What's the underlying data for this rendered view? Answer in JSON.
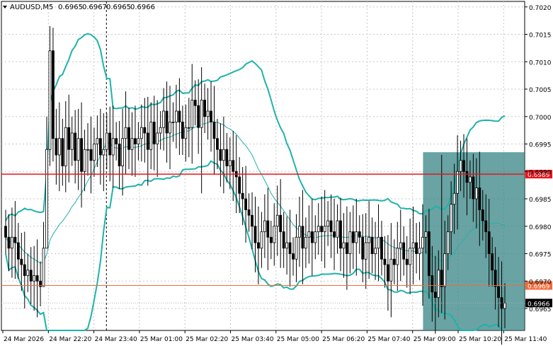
{
  "chart_data": {
    "type": "candlestick",
    "title": "AUDUSD,M5",
    "ohlc_header": [
      "0.6965",
      "0.6967",
      "0.6965",
      "0.6966"
    ],
    "ylim": [
      0.6961,
      0.7021
    ],
    "grid": true,
    "y_ticks": [
      "0.6965",
      "0.6970",
      "0.6975",
      "0.6980",
      "0.6985",
      "0.6990",
      "0.6995",
      "0.7000",
      "0.7005",
      "0.7010",
      "0.7015",
      "0.7020"
    ],
    "x_ticks": [
      "24 Mar 2026",
      "24 Mar 22:20",
      "24 Mar 23:40",
      "25 Mar 01:00",
      "25 Mar 02:20",
      "25 Mar 03:40",
      "25 Mar 05:00",
      "25 Mar 06:20",
      "25 Mar 07:40",
      "25 Mar 09:00",
      "25 Mar 10:20",
      "25 Mar 11:40"
    ],
    "period_separator_after": "24 Mar 22:20",
    "horizontal_lines": [
      {
        "price": 0.69895,
        "label": "0.6989",
        "color": "#e8141c"
      },
      {
        "price": 0.69692,
        "label": "0.6969",
        "color": "#f26a3a"
      }
    ],
    "current_price": {
      "price": 0.6966,
      "label": "0.6966"
    },
    "highlight_zone": {
      "price_top": 0.69935,
      "price_bottom": 0.6961
    },
    "candles_close": [
      0.6978,
      0.6976,
      0.6978,
      0.6977,
      0.6974,
      0.6973,
      0.6971,
      0.6972,
      0.697,
      0.6971,
      0.697,
      0.6969,
      0.6976,
      0.6994,
      0.7012,
      0.6996,
      0.6993,
      0.6996,
      0.6991,
      0.6998,
      0.6994,
      0.6997,
      0.6992,
      0.6996,
      0.699,
      0.6994,
      0.6994,
      0.6992,
      0.6995,
      0.6996,
      0.6993,
      0.6994,
      0.6997,
      0.6993,
      0.6996,
      0.6995,
      0.6991,
      0.6996,
      0.6998,
      0.6994,
      0.6996,
      0.6995,
      0.6996,
      0.6998,
      0.6997,
      0.6994,
      0.6999,
      0.6995,
      0.6997,
      0.6998,
      0.7001,
      0.6997,
      0.6999,
      0.6999,
      0.7001,
      0.6999,
      0.6996,
      0.6998,
      0.6998,
      0.7003,
      0.7002,
      0.6998,
      0.7003,
      0.7,
      0.7001,
      0.6999,
      0.6996,
      0.6994,
      0.6992,
      0.6994,
      0.6991,
      0.6992,
      0.699,
      0.6989,
      0.6986,
      0.6985,
      0.6983,
      0.6982,
      0.698,
      0.6977,
      0.6976,
      0.6979,
      0.6981,
      0.6978,
      0.6977,
      0.698,
      0.6982,
      0.6979,
      0.6976,
      0.6977,
      0.6975,
      0.6974,
      0.6978,
      0.698,
      0.6976,
      0.6978,
      0.6979,
      0.6977,
      0.6979,
      0.698,
      0.6979,
      0.698,
      0.6981,
      0.6979,
      0.6978,
      0.6981,
      0.6976,
      0.6977,
      0.6975,
      0.6979,
      0.6977,
      0.6979,
      0.6978,
      0.6974,
      0.6977,
      0.6978,
      0.6975,
      0.6976,
      0.6978,
      0.6974,
      0.6973,
      0.697,
      0.6974,
      0.6973,
      0.6976,
      0.6977,
      0.6974,
      0.6973,
      0.6976,
      0.6977,
      0.6975,
      0.6976,
      0.6978,
      0.6979,
      0.6971,
      0.6968,
      0.6967,
      0.6972,
      0.6969,
      0.6975,
      0.6979,
      0.6984,
      0.6986,
      0.699,
      0.6992,
      0.699,
      0.6988,
      0.6989,
      0.6985,
      0.6987,
      0.6983,
      0.6981,
      0.6979,
      0.6975,
      0.6972,
      0.6969,
      0.6967,
      0.6965,
      0.6966
    ]
  }
}
